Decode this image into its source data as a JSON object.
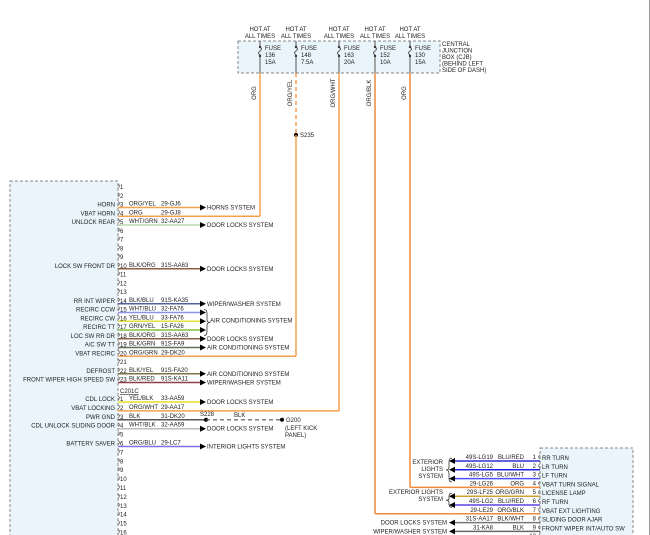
{
  "fuse_box": {
    "label_lines": [
      "CENTRAL",
      "JUNCTION",
      "BOX (CJB)",
      "(BEHIND LEFT",
      "SIDE OF DASH)"
    ],
    "fuses": [
      {
        "hot": [
          "HOT AT",
          "ALL TIMES"
        ],
        "name": "FUSE",
        "number": "136",
        "rating": "15A",
        "wire": "ORG",
        "color": "#f5a050"
      },
      {
        "hot": [
          "HOT AT",
          "ALL TIMES"
        ],
        "name": "FUSE",
        "number": "148",
        "rating": "7.5A",
        "wire": "ORG/YEL",
        "color": "#f5a050"
      },
      {
        "hot": [
          "HOT AT",
          "ALL TIMES"
        ],
        "name": "FUSE",
        "number": "163",
        "rating": "20A",
        "wire": "ORG/WHT",
        "color": "#f5a050"
      },
      {
        "hot": [
          "HOT AT",
          "ALL TIMES"
        ],
        "name": "FUSE",
        "number": "152",
        "rating": "10A",
        "wire": "ORG/BLK",
        "color": "#f08a3a"
      },
      {
        "hot": [
          "HOT AT",
          "ALL TIMES"
        ],
        "name": "FUSE",
        "number": "130",
        "rating": "15A",
        "wire": "ORG",
        "color": "#f08a3a"
      }
    ]
  },
  "splice": "S235",
  "connector_a": {
    "pins": [
      {
        "n": "1",
        "label": "",
        "color": "",
        "circuit": "",
        "dest": ""
      },
      {
        "n": "2",
        "label": "",
        "color": "",
        "circuit": "",
        "dest": ""
      },
      {
        "n": "3",
        "label": "HORN",
        "color": "ORG/YEL",
        "circuit": "29-GJ6",
        "dest": "HORNS SYSTEM",
        "wire": "#f5a050"
      },
      {
        "n": "4",
        "label": "VBAT HORN",
        "color": "ORG",
        "circuit": "29-GJ8",
        "dest": "",
        "wire": "#f5a050"
      },
      {
        "n": "5",
        "label": "UNLOCK REAR",
        "color": "WHT/GRN",
        "circuit": "32-AA27",
        "dest": "DOOR LOCKS SYSTEM",
        "wire": "#b8d8b0"
      },
      {
        "n": "6",
        "label": "",
        "color": "",
        "circuit": "",
        "dest": ""
      },
      {
        "n": "7",
        "label": "",
        "color": "",
        "circuit": "",
        "dest": ""
      },
      {
        "n": "8",
        "label": "",
        "color": "",
        "circuit": "",
        "dest": ""
      },
      {
        "n": "9",
        "label": "",
        "color": "",
        "circuit": "",
        "dest": ""
      },
      {
        "n": "10",
        "label": "LOCK SW FRONT DR",
        "color": "BLK/ORG",
        "circuit": "31S-AA63",
        "dest": "DOOR LOCKS SYSTEM",
        "wire": "#8a6040"
      },
      {
        "n": "11",
        "label": "",
        "color": "",
        "circuit": "",
        "dest": ""
      },
      {
        "n": "12",
        "label": "",
        "color": "",
        "circuit": "",
        "dest": ""
      },
      {
        "n": "13",
        "label": "",
        "color": "",
        "circuit": "",
        "dest": ""
      },
      {
        "n": "14",
        "label": "RR INT WIPER",
        "color": "BLK/BLU",
        "circuit": "91S-KA35",
        "dest": "WIPER/WASHER SYSTEM",
        "wire": "#5060a0"
      },
      {
        "n": "15",
        "label": "RECIRC CCW",
        "color": "WHT/BLU",
        "circuit": "32-FA76",
        "dest": "",
        "wire": "#9090f0"
      },
      {
        "n": "16",
        "label": "RECIRC CW",
        "color": "YEL/BLU",
        "circuit": "33-FA76",
        "dest": "",
        "wire": "#e0e040"
      },
      {
        "n": "17",
        "label": "RECIRC TT",
        "color": "GRN/YEL",
        "circuit": "15-FA26",
        "dest": "",
        "wire": "#80c040"
      },
      {
        "n": "18",
        "label": "LOC SW RR DR",
        "color": "BLK/ORG",
        "circuit": "31S-AA63",
        "dest": "DOOR LOCKS SYSTEM",
        "wire": "#8a6040"
      },
      {
        "n": "19",
        "label": "A/C SW TT",
        "color": "BLK/GRN",
        "circuit": "91S-FA9",
        "dest": "AIR CONDITIONING SYSTEM",
        "wire": "#607050"
      },
      {
        "n": "20",
        "label": "VBAT RECIRC",
        "color": "ORG/GRN",
        "circuit": "29-DK20",
        "dest": "",
        "wire": "#f5a050"
      },
      {
        "n": "21",
        "label": "",
        "color": "",
        "circuit": "",
        "dest": ""
      },
      {
        "n": "22",
        "label": "DEFROST",
        "color": "BLK/YEL",
        "circuit": "91S-FA20",
        "dest": "AIR CONDITIONING SYSTEM",
        "wire": "#807040"
      },
      {
        "n": "23",
        "label": "FRONT WIPER HIGH SPEED SW",
        "color": "BLK/RED",
        "circuit": "91S-KA11",
        "dest": "WIPER/WASHER SYSTEM",
        "wire": "#904040"
      }
    ],
    "group_dest": "AIR CONDITIONING SYSTEM"
  },
  "connector_b": {
    "name": "C201C",
    "pins": [
      {
        "n": "1",
        "label": "CDL LOCK",
        "color": "YEL/BLK",
        "circuit": "33-AA59",
        "dest": "DOOR LOCKS SYSTEM",
        "wire": "#e0e020"
      },
      {
        "n": "2",
        "label": "VBAT LOCKING",
        "color": "ORG/WHT",
        "circuit": "29-AA17",
        "dest": "",
        "wire": "#f5a050"
      },
      {
        "n": "3",
        "label": "PWR GND",
        "color": "BLK",
        "circuit": "31-DK20",
        "dest": "",
        "wire": "#555"
      },
      {
        "n": "4",
        "label": "CDL UNLOCK SLIDING DOOR",
        "color": "WHT/BLK",
        "circuit": "32-AA59",
        "dest": "DOOR LOCKS SYSTEM",
        "wire": "#bbb"
      },
      {
        "n": "5",
        "label": "",
        "color": "",
        "circuit": "",
        "dest": ""
      },
      {
        "n": "6",
        "label": "BATTERY SAVER",
        "color": "ORG/BLU",
        "circuit": "29-LC7",
        "dest": "INTERIOR LIGHTS SYSTEM",
        "wire": "#8070e0"
      },
      {
        "n": "7",
        "label": "",
        "color": "",
        "circuit": "",
        "dest": ""
      },
      {
        "n": "8",
        "label": "",
        "color": "",
        "circuit": "",
        "dest": ""
      },
      {
        "n": "9",
        "label": "",
        "color": "",
        "circuit": "",
        "dest": ""
      },
      {
        "n": "10",
        "label": "",
        "color": "",
        "circuit": "",
        "dest": ""
      },
      {
        "n": "11",
        "label": "",
        "color": "",
        "circuit": "",
        "dest": ""
      },
      {
        "n": "12",
        "label": "",
        "color": "",
        "circuit": "",
        "dest": ""
      },
      {
        "n": "13",
        "label": "",
        "color": "",
        "circuit": "",
        "dest": ""
      },
      {
        "n": "14",
        "label": "",
        "color": "",
        "circuit": "",
        "dest": ""
      },
      {
        "n": "15",
        "label": "",
        "color": "",
        "circuit": "",
        "dest": ""
      },
      {
        "n": "16",
        "label": "",
        "color": "",
        "circuit": "",
        "dest": ""
      }
    ],
    "ground_splice": "S228",
    "ground_wire": "BLK",
    "ground": "G200",
    "ground_location": [
      "(LEFT KICK",
      "PANEL)"
    ]
  },
  "connector_c": {
    "pins": [
      {
        "n": "1",
        "label": "RR TURN",
        "circuit": "49S-LG19",
        "color": "BLU/RED",
        "wire": "#3030d0"
      },
      {
        "n": "2",
        "label": "LR TURN",
        "circuit": "49S-LG12",
        "color": "BLU",
        "wire": "#2020e0"
      },
      {
        "n": "3",
        "label": "LF TURN",
        "circuit": "49S-LG5",
        "color": "BLU/WHT",
        "wire": "#5050f0"
      },
      {
        "n": "4",
        "label": "VBAT TURN SIGNAL",
        "circuit": "29-LG26",
        "color": "ORG",
        "wire": "#f08a3a"
      },
      {
        "n": "5",
        "label": "LICENSE LAMP",
        "circuit": "29S-LF25",
        "color": "ORG/GRN",
        "wire": "#d0a030"
      },
      {
        "n": "6",
        "label": "RF TURN",
        "circuit": "49S-LG2",
        "color": "BLU/RED",
        "wire": "#6040e0"
      },
      {
        "n": "7",
        "label": "VBAT EXT LIGHTING",
        "circuit": "29-LE29",
        "color": "ORG/BLK",
        "wire": "#f08a3a"
      },
      {
        "n": "8",
        "label": "SLIDING DOOR AJAR",
        "circuit": "31S-AA17",
        "color": "BLK/WHT",
        "wire": "#777"
      },
      {
        "n": "9",
        "label": "FRONT WIPER INT/AUTO SW",
        "circuit": "31-KA8",
        "color": "BLK",
        "wire": "#666"
      },
      {
        "n": "10",
        "label": "",
        "circuit": "",
        "color": ""
      }
    ],
    "group1_dest": [
      "EXTERIOR",
      "LIGHTS",
      "SYSTEM"
    ],
    "group2_dest": [
      "EXTERIOR LIGHTS",
      "SYSTEM"
    ],
    "pin8_dest": "DOOR LOCKS SYSTEM",
    "pin9_dest": "WIPER/WASHER SYSTEM"
  }
}
